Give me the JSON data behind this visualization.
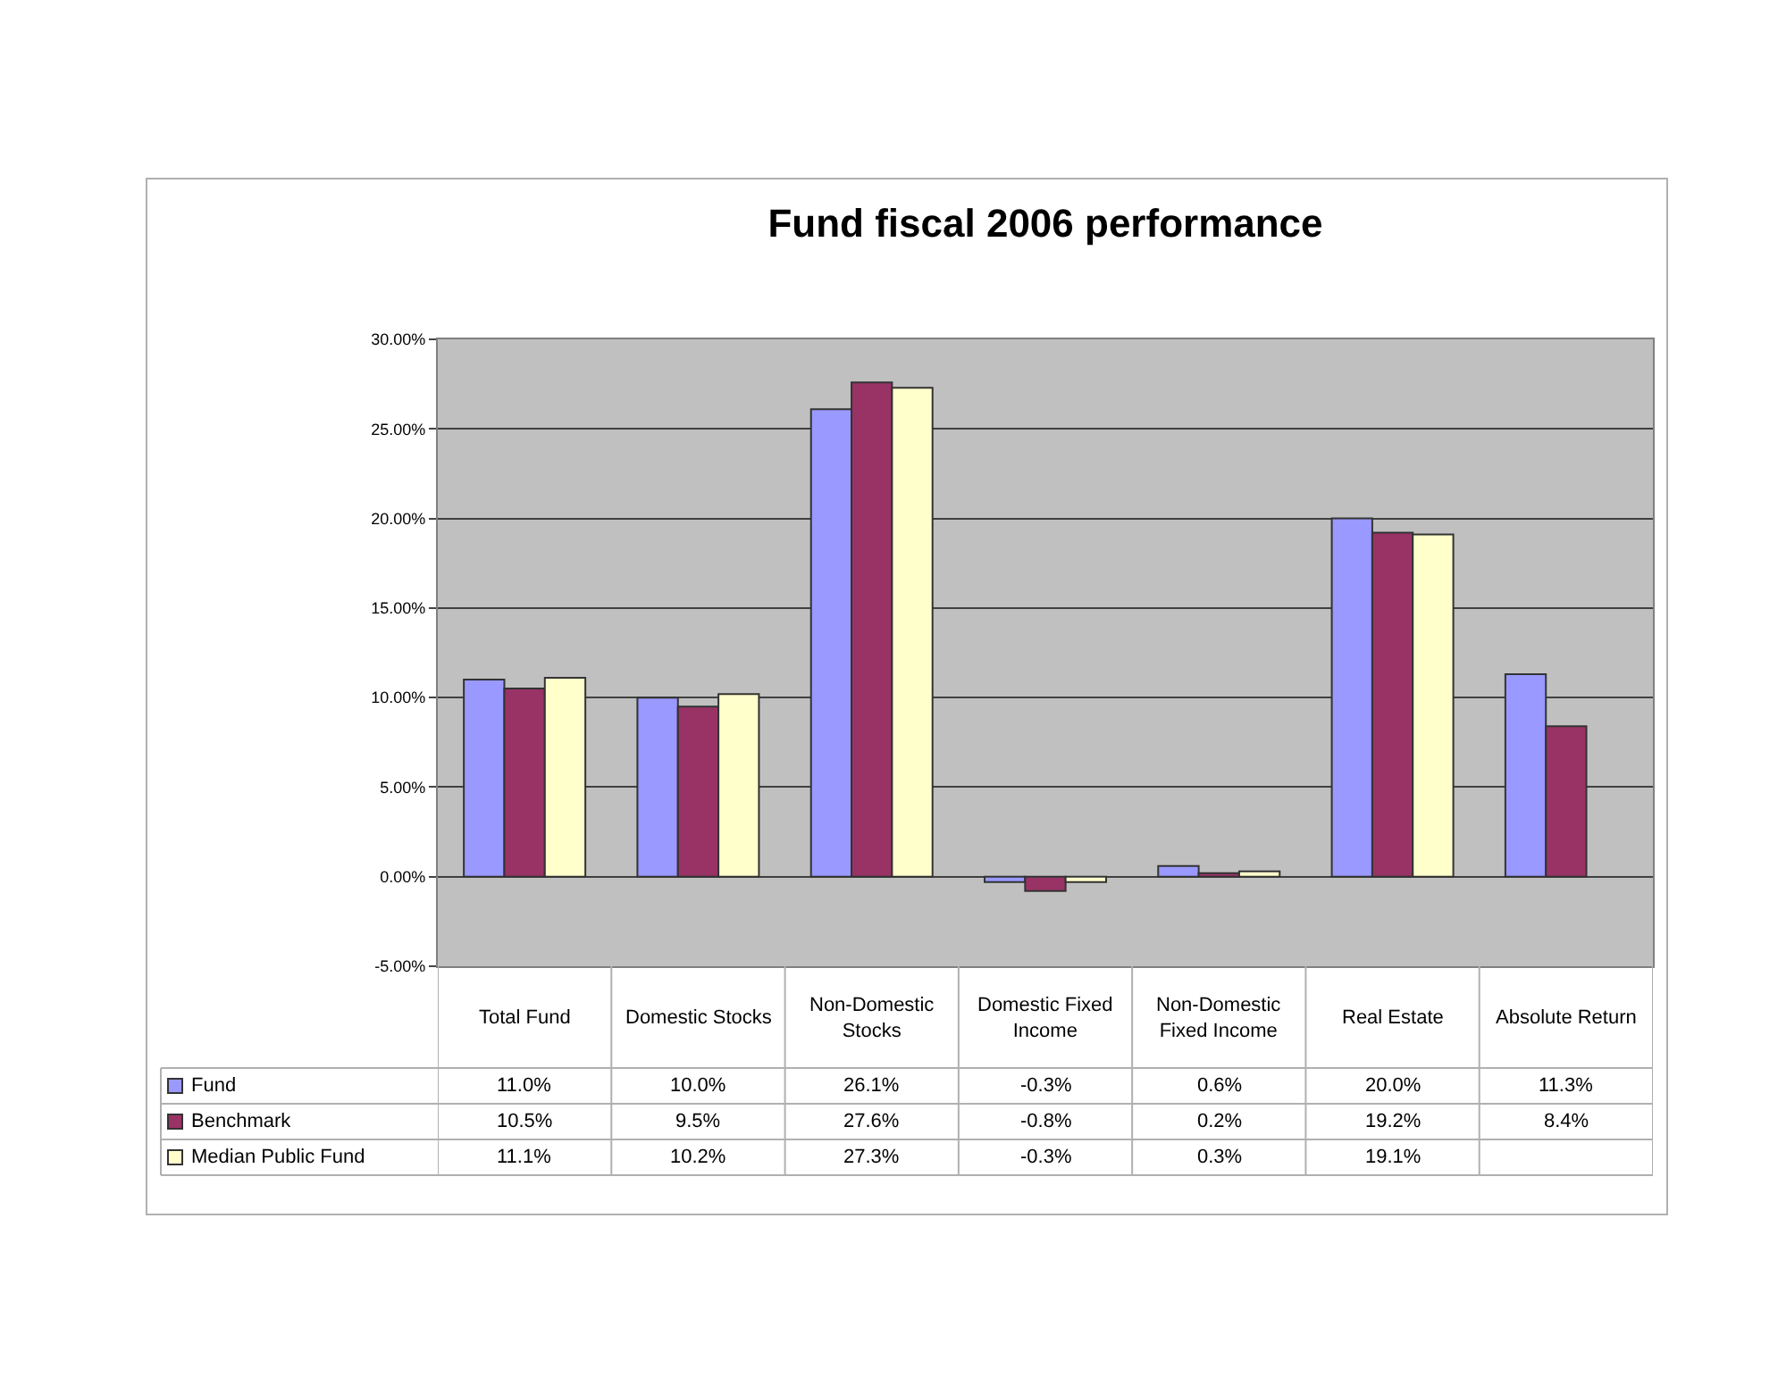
{
  "chart_data": {
    "type": "bar",
    "title": "Fund fiscal 2006 performance",
    "categories": [
      "Total Fund",
      "Domestic Stocks",
      "Non-Domestic Stocks",
      "Domestic Fixed Income",
      "Non-Domestic Fixed Income",
      "Real Estate",
      "Absolute Return"
    ],
    "series": [
      {
        "name": "Fund",
        "color": "#9999ff",
        "values": [
          11.0,
          10.0,
          26.1,
          -0.3,
          0.6,
          20.0,
          11.3
        ],
        "value_labels": [
          "11.0%",
          "10.0%",
          "26.1%",
          "-0.3%",
          "0.6%",
          "20.0%",
          "11.3%"
        ]
      },
      {
        "name": "Benchmark",
        "color": "#993366",
        "values": [
          10.5,
          9.5,
          27.6,
          -0.8,
          0.2,
          19.2,
          8.4
        ],
        "value_labels": [
          "10.5%",
          "9.5%",
          "27.6%",
          "-0.8%",
          "0.2%",
          "19.2%",
          "8.4%"
        ]
      },
      {
        "name": "Median Public Fund",
        "color": "#ffffcc",
        "values": [
          11.1,
          10.2,
          27.3,
          -0.3,
          0.3,
          19.1,
          null
        ],
        "value_labels": [
          "11.1%",
          "10.2%",
          "27.3%",
          "-0.3%",
          "0.3%",
          "19.1%",
          null
        ]
      }
    ],
    "ylim": [
      -5,
      30
    ],
    "yticks": [
      {
        "value": -5,
        "label": "-5.00%"
      },
      {
        "value": 0,
        "label": "0.00%"
      },
      {
        "value": 5,
        "label": "5.00%"
      },
      {
        "value": 10,
        "label": "10.00%"
      },
      {
        "value": 15,
        "label": "15.00%"
      },
      {
        "value": 20,
        "label": "20.00%"
      },
      {
        "value": 25,
        "label": "25.00%"
      },
      {
        "value": 30,
        "label": "30.00%"
      }
    ],
    "grid": "y",
    "legend": "bottom left"
  }
}
